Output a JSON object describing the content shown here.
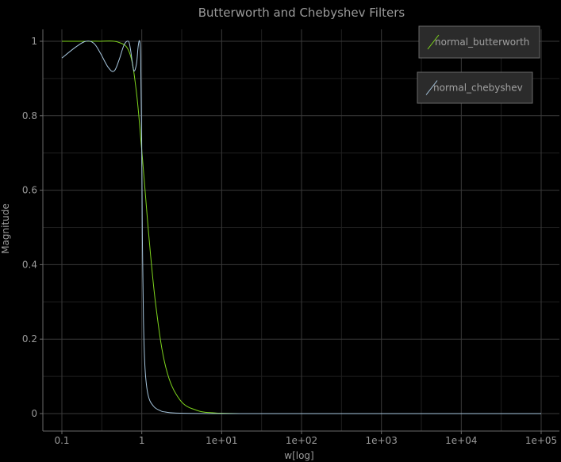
{
  "chart_data": {
    "type": "line",
    "title": "Butterworth and Chebyshev Filters",
    "xlabel": "w[log]",
    "ylabel": "Magnitude",
    "x_scale": "log",
    "xlim": [
      0.1,
      100000
    ],
    "ylim": [
      0,
      1
    ],
    "x_ticks": [
      {
        "value": 0.1,
        "label": "0.1"
      },
      {
        "value": 1,
        "label": "1"
      },
      {
        "value": 10,
        "label": "1e+01"
      },
      {
        "value": 100,
        "label": "1e+02"
      },
      {
        "value": 1000,
        "label": "1e+03"
      },
      {
        "value": 10000,
        "label": "1e+04"
      },
      {
        "value": 100000,
        "label": "1e+05"
      }
    ],
    "y_ticks": [
      {
        "value": 0,
        "label": "0"
      },
      {
        "value": 0.2,
        "label": "0.2"
      },
      {
        "value": 0.4,
        "label": "0.4"
      },
      {
        "value": 0.6,
        "label": "0.6"
      },
      {
        "value": 0.8,
        "label": "0.8"
      },
      {
        "value": 1,
        "label": "1"
      }
    ],
    "grid": true,
    "legend_position": "top-right",
    "series": [
      {
        "name": "normal_butterworth",
        "color": "#7fd61d",
        "x": [
          0.1,
          0.2,
          0.3,
          0.5,
          0.7,
          0.85,
          1,
          1.2,
          1.5,
          2,
          3,
          5,
          8,
          10,
          20,
          100,
          1000,
          10000,
          100000
        ],
        "y": [
          1,
          1,
          1,
          0.998,
          0.97,
          0.87,
          0.707,
          0.5,
          0.29,
          0.124,
          0.037,
          0.008,
          0.002,
          0.001,
          0,
          0,
          0,
          0,
          0
        ]
      },
      {
        "name": "normal_chebyshev",
        "color": "#a8c8e0",
        "x": [
          0.1,
          0.15,
          0.2,
          0.25,
          0.3,
          0.38,
          0.45,
          0.52,
          0.6,
          0.68,
          0.72,
          0.76,
          0.8,
          0.86,
          0.9,
          0.94,
          0.97,
          1,
          1.02,
          1.05,
          1.1,
          1.2,
          1.4,
          1.7,
          2,
          3,
          10,
          100,
          1000,
          10000,
          100000
        ],
        "y": [
          0.955,
          0.985,
          1,
          0.995,
          0.97,
          0.93,
          0.92,
          0.95,
          0.99,
          1,
          0.98,
          0.945,
          0.92,
          0.94,
          0.985,
          1,
          0.95,
          0.7,
          0.45,
          0.25,
          0.12,
          0.05,
          0.02,
          0.008,
          0.004,
          0.001,
          0,
          0,
          0,
          0,
          0
        ]
      }
    ]
  }
}
